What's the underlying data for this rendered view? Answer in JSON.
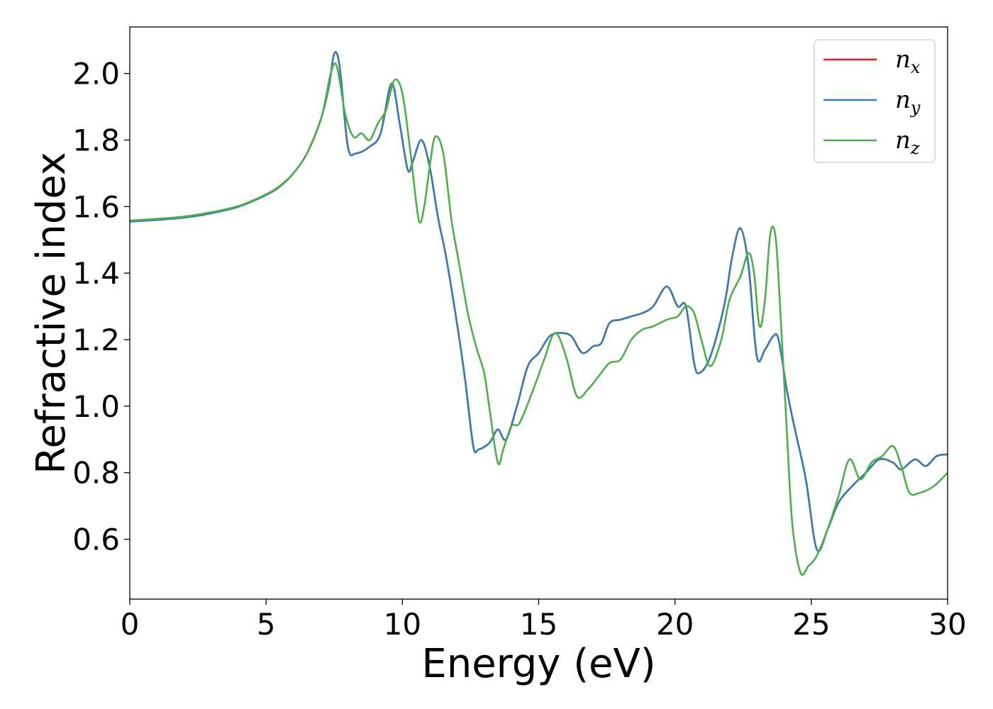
{
  "chart_data": {
    "type": "line",
    "xlabel": "Energy (eV)",
    "ylabel": "Refractive index",
    "xlim": [
      0,
      30
    ],
    "ylim": [
      0.42,
      2.14
    ],
    "xticks": [
      0,
      5,
      10,
      15,
      20,
      25,
      30
    ],
    "xtick_labels": [
      "0",
      "5",
      "10",
      "15",
      "20",
      "25",
      "30"
    ],
    "yticks": [
      0.6,
      0.8,
      1.0,
      1.2,
      1.4,
      1.6,
      1.8,
      2.0
    ],
    "ytick_labels": [
      "0.6",
      "0.8",
      "1.0",
      "1.2",
      "1.4",
      "1.6",
      "1.8",
      "2.0"
    ],
    "grid": false,
    "legend_position": "top-right",
    "series": [
      {
        "name": "n_x",
        "legend_base": "n",
        "legend_sub": "x",
        "color": "#e41a1c",
        "x": [
          0,
          1,
          2,
          3,
          4,
          5,
          5.5,
          6,
          6.5,
          7,
          7.3,
          7.5,
          7.7,
          8,
          8.3,
          8.8,
          9.2,
          9.6,
          9.9,
          10.2,
          10.4,
          10.7,
          11,
          11.3,
          11.6,
          12,
          12.3,
          12.6,
          12.8,
          13.2,
          13.5,
          13.8,
          14.2,
          14.6,
          15,
          15.4,
          15.8,
          16.2,
          16.6,
          17,
          17.3,
          17.6,
          18,
          18.4,
          18.8,
          19.2,
          19.7,
          20.1,
          20.4,
          20.7,
          20.9,
          21.3,
          21.8,
          22.1,
          22.4,
          22.7,
          23,
          23.3,
          23.6,
          23.8,
          24.1,
          24.4,
          24.8,
          25.2,
          25.6,
          26,
          26.5,
          27,
          27.5,
          28,
          28.3,
          28.8,
          29.2,
          29.6,
          30
        ],
        "values": [
          1.555,
          1.56,
          1.567,
          1.58,
          1.6,
          1.635,
          1.66,
          1.7,
          1.76,
          1.86,
          1.96,
          2.06,
          2.02,
          1.78,
          1.76,
          1.78,
          1.82,
          1.97,
          1.85,
          1.71,
          1.74,
          1.8,
          1.72,
          1.57,
          1.45,
          1.25,
          1.08,
          0.88,
          0.87,
          0.89,
          0.93,
          0.9,
          1.0,
          1.12,
          1.16,
          1.21,
          1.22,
          1.21,
          1.16,
          1.18,
          1.19,
          1.25,
          1.26,
          1.27,
          1.28,
          1.3,
          1.36,
          1.3,
          1.3,
          1.13,
          1.1,
          1.15,
          1.3,
          1.45,
          1.535,
          1.42,
          1.15,
          1.17,
          1.21,
          1.2,
          1.05,
          0.93,
          0.78,
          0.57,
          0.63,
          0.71,
          0.76,
          0.8,
          0.84,
          0.83,
          0.81,
          0.84,
          0.82,
          0.85,
          0.855
        ]
      },
      {
        "name": "n_y",
        "legend_base": "n",
        "legend_sub": "y",
        "color": "#377eb8",
        "x": [
          0,
          1,
          2,
          3,
          4,
          5,
          5.5,
          6,
          6.5,
          7,
          7.3,
          7.5,
          7.7,
          8,
          8.3,
          8.8,
          9.2,
          9.6,
          9.9,
          10.2,
          10.4,
          10.7,
          11,
          11.3,
          11.6,
          12,
          12.3,
          12.6,
          12.8,
          13.2,
          13.5,
          13.8,
          14.2,
          14.6,
          15,
          15.4,
          15.8,
          16.2,
          16.6,
          17,
          17.3,
          17.6,
          18,
          18.4,
          18.8,
          19.2,
          19.7,
          20.1,
          20.4,
          20.7,
          20.9,
          21.3,
          21.8,
          22.1,
          22.4,
          22.7,
          23,
          23.3,
          23.6,
          23.8,
          24.1,
          24.4,
          24.8,
          25.2,
          25.6,
          26,
          26.5,
          27,
          27.5,
          28,
          28.3,
          28.8,
          29.2,
          29.6,
          30
        ],
        "values": [
          1.555,
          1.56,
          1.567,
          1.58,
          1.6,
          1.635,
          1.66,
          1.7,
          1.76,
          1.86,
          1.96,
          2.06,
          2.02,
          1.78,
          1.76,
          1.78,
          1.82,
          1.97,
          1.85,
          1.71,
          1.74,
          1.8,
          1.72,
          1.57,
          1.45,
          1.25,
          1.08,
          0.88,
          0.87,
          0.89,
          0.93,
          0.9,
          1.0,
          1.12,
          1.16,
          1.21,
          1.22,
          1.21,
          1.16,
          1.18,
          1.19,
          1.25,
          1.26,
          1.27,
          1.28,
          1.3,
          1.36,
          1.3,
          1.3,
          1.13,
          1.1,
          1.15,
          1.3,
          1.45,
          1.535,
          1.42,
          1.15,
          1.17,
          1.21,
          1.2,
          1.05,
          0.93,
          0.78,
          0.57,
          0.63,
          0.71,
          0.76,
          0.8,
          0.84,
          0.83,
          0.81,
          0.84,
          0.82,
          0.85,
          0.855
        ]
      },
      {
        "name": "n_z",
        "legend_base": "n",
        "legend_sub": "z",
        "color": "#4daf4a",
        "x": [
          0,
          1,
          2,
          3,
          4,
          5,
          5.5,
          6,
          6.5,
          7,
          7.2,
          7.4,
          7.6,
          7.9,
          8.2,
          8.5,
          8.8,
          9.1,
          9.4,
          9.7,
          10,
          10.3,
          10.6,
          10.8,
          11,
          11.2,
          11.5,
          11.8,
          12.1,
          12.4,
          12.7,
          13,
          13.2,
          13.5,
          13.7,
          14,
          14.3,
          14.8,
          15.2,
          15.6,
          16,
          16.4,
          16.8,
          17.2,
          17.6,
          18,
          18.4,
          18.8,
          19.2,
          19.7,
          20.1,
          20.4,
          20.7,
          21,
          21.3,
          21.7,
          22,
          22.4,
          22.7,
          22.9,
          23.1,
          23.3,
          23.5,
          23.7,
          23.9,
          24.1,
          24.3,
          24.6,
          24.9,
          25.2,
          25.6,
          26,
          26.4,
          26.8,
          27.2,
          27.6,
          28,
          28.3,
          28.6,
          29,
          29.5,
          30
        ],
        "values": [
          1.558,
          1.563,
          1.57,
          1.583,
          1.602,
          1.637,
          1.662,
          1.7,
          1.76,
          1.86,
          1.93,
          2.01,
          2.02,
          1.88,
          1.81,
          1.82,
          1.8,
          1.85,
          1.89,
          1.98,
          1.94,
          1.76,
          1.56,
          1.6,
          1.72,
          1.81,
          1.76,
          1.56,
          1.42,
          1.28,
          1.18,
          1.1,
          0.99,
          0.83,
          0.87,
          0.94,
          0.95,
          1.05,
          1.14,
          1.22,
          1.15,
          1.03,
          1.05,
          1.09,
          1.13,
          1.14,
          1.2,
          1.23,
          1.24,
          1.26,
          1.27,
          1.3,
          1.28,
          1.19,
          1.12,
          1.2,
          1.32,
          1.39,
          1.46,
          1.4,
          1.24,
          1.32,
          1.52,
          1.5,
          1.23,
          0.93,
          0.65,
          0.5,
          0.52,
          0.55,
          0.63,
          0.73,
          0.84,
          0.78,
          0.83,
          0.85,
          0.88,
          0.82,
          0.74,
          0.74,
          0.76,
          0.8
        ]
      }
    ]
  }
}
